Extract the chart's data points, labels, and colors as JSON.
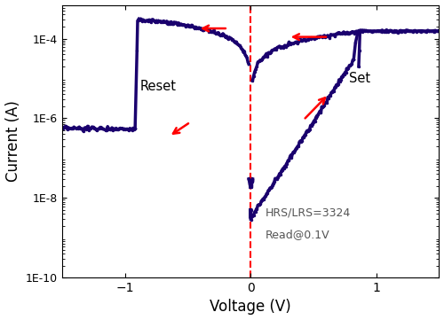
{
  "title": "",
  "xlabel": "Voltage (V)",
  "ylabel": "Current (A)",
  "xlim": [
    -1.5,
    1.5
  ],
  "line_color": "#1a006e",
  "arrow_color": "red",
  "dashed_line_color": "red",
  "annotation_text1": "HRS/LRS=3324",
  "annotation_text2": "Read@0.1V",
  "reset_label": "Reset",
  "set_label": "Set",
  "bg_color": "#ffffff",
  "lw": 2.5,
  "marker_size": 2.5,
  "ytick_labels": [
    "1E-10",
    "1E-8",
    "1E-6",
    "1E-4"
  ],
  "ytick_vals": [
    1e-10,
    1e-08,
    1e-06,
    0.0001
  ],
  "xtick_vals": [
    -1,
    0,
    1
  ]
}
